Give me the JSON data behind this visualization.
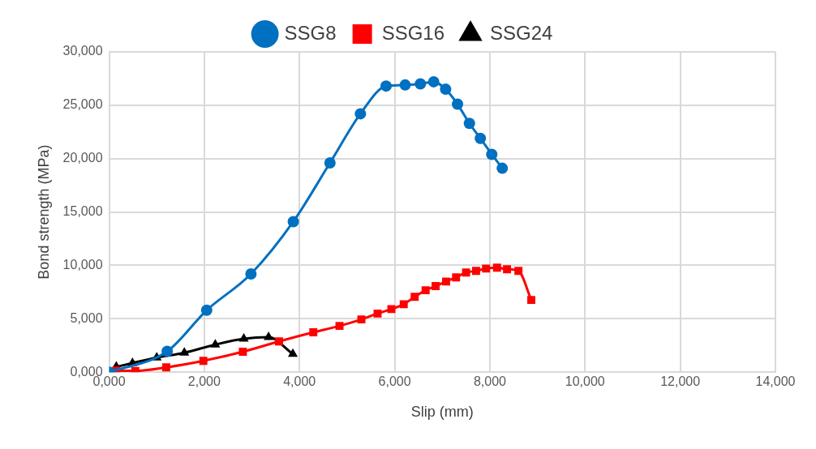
{
  "chart_data": {
    "type": "line",
    "xlabel": "Slip (mm)",
    "ylabel": "Bond strength (MPa)",
    "legend": "top",
    "grid": true,
    "line_style": "solid",
    "xlim": [
      0,
      14
    ],
    "xticks": [
      {
        "value": 0,
        "label": "0,000"
      },
      {
        "value": 2,
        "label": "2,000"
      },
      {
        "value": 4,
        "label": "4,000"
      },
      {
        "value": 6,
        "label": "6,000"
      },
      {
        "value": 8,
        "label": "8,000"
      },
      {
        "value": 10,
        "label": "10,000"
      },
      {
        "value": 12,
        "label": "12,000"
      },
      {
        "value": 14,
        "label": "14,000"
      }
    ],
    "ylim": [
      0,
      30
    ],
    "yticks": [
      {
        "value": 0,
        "label": "0,000"
      },
      {
        "value": 5,
        "label": "5,000"
      },
      {
        "value": 10,
        "label": "10,000"
      },
      {
        "value": 15,
        "label": "15,000"
      },
      {
        "value": 20,
        "label": "20,000"
      },
      {
        "value": 25,
        "label": "25,000"
      },
      {
        "value": 30,
        "label": "30,000"
      }
    ],
    "series": [
      {
        "name": "SSG8",
        "color": "#0070c0",
        "marker": "circle",
        "x": [
          0,
          1.22,
          2.05,
          2.98,
          3.87,
          4.64,
          5.28,
          5.82,
          6.22,
          6.54,
          6.82,
          7.07,
          7.32,
          7.57,
          7.8,
          8.04,
          8.26
        ],
        "values": [
          0,
          1.95,
          5.8,
          9.2,
          14.1,
          19.6,
          24.2,
          26.8,
          26.9,
          27.0,
          27.2,
          26.5,
          25.1,
          23.3,
          21.9,
          20.4,
          19.1
        ]
      },
      {
        "name": "SSG16",
        "color": "#ff0000",
        "marker": "square",
        "x": [
          0.15,
          0.55,
          1.2,
          1.98,
          2.81,
          3.57,
          4.29,
          4.84,
          5.3,
          5.64,
          5.93,
          6.19,
          6.42,
          6.65,
          6.86,
          7.08,
          7.29,
          7.5,
          7.71,
          7.92,
          8.15,
          8.36,
          8.6,
          8.87
        ],
        "values": [
          0.15,
          0.12,
          0.45,
          1.06,
          1.91,
          2.88,
          3.73,
          4.33,
          4.94,
          5.49,
          5.91,
          6.36,
          7.06,
          7.67,
          8.06,
          8.49,
          8.88,
          9.33,
          9.49,
          9.7,
          9.79,
          9.64,
          9.49,
          6.76
        ]
      },
      {
        "name": "SSG24",
        "color": "#000000",
        "marker": "triangle",
        "x": [
          0.15,
          0.49,
          1.0,
          1.58,
          2.23,
          2.83,
          3.35,
          3.86
        ],
        "values": [
          0.5,
          0.85,
          1.36,
          1.82,
          2.58,
          3.12,
          3.27,
          1.7
        ]
      }
    ]
  }
}
